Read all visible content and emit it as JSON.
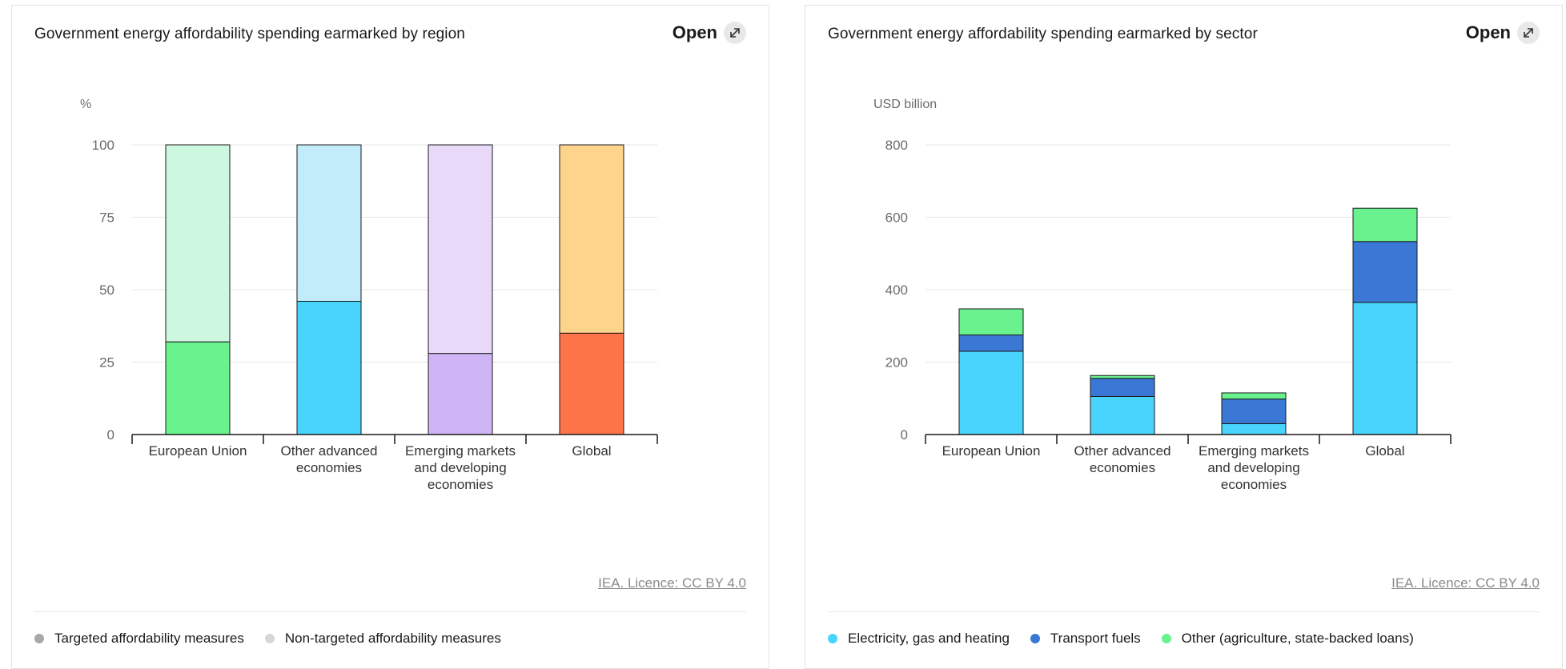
{
  "open_label": "Open",
  "licence": "IEA. Licence: CC BY 4.0",
  "charts": [
    {
      "title": "Government energy affordability spending earmarked by region",
      "unit": "%",
      "legend": [
        {
          "label": "Targeted affordability measures",
          "color": "#a8a8a8"
        },
        {
          "label": "Non-targeted affordability measures",
          "color": "#d6d6d6"
        }
      ]
    },
    {
      "title": "Government energy affordability spending earmarked by sector",
      "unit": "USD billion",
      "legend": [
        {
          "label": "Electricity, gas and heating",
          "color": "#48d4fd"
        },
        {
          "label": "Transport fuels",
          "color": "#3b78d6"
        },
        {
          "label": "Other (agriculture, state-backed loans)",
          "color": "#69f28d"
        }
      ]
    }
  ],
  "chart_data": [
    {
      "type": "bar",
      "stacked": true,
      "title": "Government energy affordability spending earmarked by region",
      "ylabel": "%",
      "ylim": [
        0,
        100
      ],
      "yticks": [
        0,
        25,
        50,
        75,
        100
      ],
      "categories": [
        [
          "European Union"
        ],
        [
          "Other advanced",
          "economies"
        ],
        [
          "Emerging markets",
          "and developing",
          "economies"
        ],
        [
          "Global"
        ]
      ],
      "series": [
        {
          "name": "Targeted affordability measures",
          "values": [
            32,
            46,
            28,
            35
          ],
          "colors": [
            "#69f28d",
            "#48d4fd",
            "#cfb5f5",
            "#fe7449"
          ]
        },
        {
          "name": "Non-targeted affordability measures",
          "values": [
            68,
            54,
            72,
            65
          ],
          "colors": [
            "#cdf7df",
            "#c3ecfa",
            "#e8d9f9",
            "#fed48d"
          ]
        }
      ],
      "grid": true,
      "legend_position": "bottom"
    },
    {
      "type": "bar",
      "stacked": true,
      "title": "Government energy affordability spending earmarked by sector",
      "ylabel": "USD billion",
      "ylim": [
        0,
        800
      ],
      "yticks": [
        0,
        200,
        400,
        600,
        800
      ],
      "categories": [
        [
          "European Union"
        ],
        [
          "Other advanced",
          "economies"
        ],
        [
          "Emerging markets",
          "and developing",
          "economies"
        ],
        [
          "Global"
        ]
      ],
      "series": [
        {
          "name": "Electricity, gas and heating",
          "values": [
            230,
            105,
            30,
            365
          ],
          "color": "#48d4fd"
        },
        {
          "name": "Transport fuels",
          "values": [
            45,
            50,
            68,
            168
          ],
          "color": "#3b78d6"
        },
        {
          "name": "Other (agriculture, state-backed loans)",
          "values": [
            72,
            8,
            17,
            92
          ],
          "color": "#69f28d"
        }
      ],
      "grid": true,
      "legend_position": "bottom"
    }
  ]
}
